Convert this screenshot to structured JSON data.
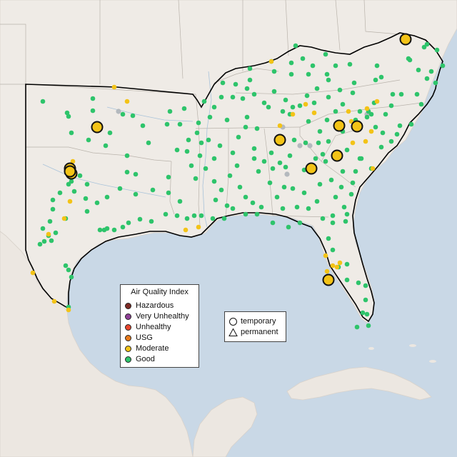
{
  "legend_aqi": {
    "title": "Air Quality Index",
    "items": [
      {
        "label": "Hazardous",
        "color": "#7e2a24"
      },
      {
        "label": "Very Unhealthy",
        "color": "#8f3f97"
      },
      {
        "label": "Unhealthy",
        "color": "#e8452c"
      },
      {
        "label": "USG",
        "color": "#e77a1c"
      },
      {
        "label": "Moderate",
        "color": "#f3c317"
      },
      {
        "label": "Good",
        "color": "#2ec46b"
      }
    ]
  },
  "legend_type": {
    "items": [
      {
        "label": "temporary",
        "shape": "circle"
      },
      {
        "label": "permanent",
        "shape": "triangle"
      }
    ]
  },
  "colors": {
    "good": "#2ec46b",
    "moderate": "#f3c317",
    "no_data": "#b4b9be",
    "land": "#efebe6",
    "water": "#c9d8e6",
    "region_outline": "#000000"
  },
  "markers": {
    "good_count": 230,
    "moderate_small_count": 40,
    "moderate_large_count": 11
  }
}
